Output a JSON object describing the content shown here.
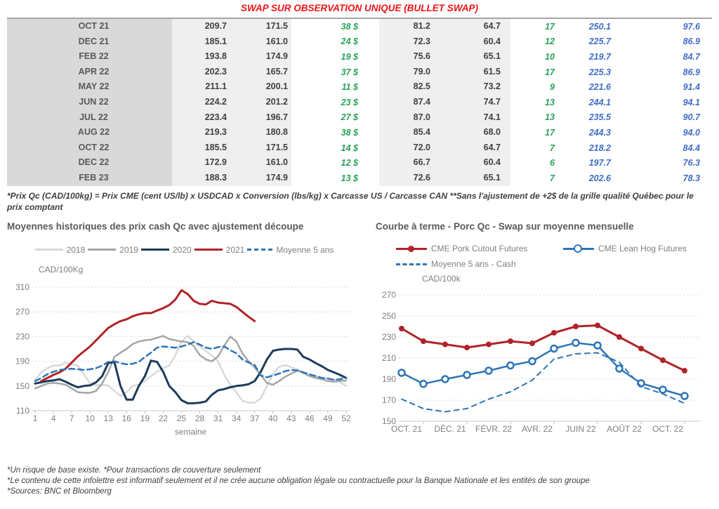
{
  "page": {
    "title": "SWAP SUR OBSERVATION UNIQUE (BULLET SWAP)",
    "title_color": "#ee1416",
    "table_footnote": "*Prix Qc (CAD/100kg) = Prix CME (cent US/lb) x USDCAD x Conversion (lbs/kg) x Carcasse US / Carcasse CAN **Sans l'ajustement de +2$ de la grille qualité Québec pour le prix comptant",
    "footer_lines": [
      "*Un risque de base existe. *Pour transactions de couverture seulement",
      "*Le contenu de cette infolettre est informatif seulement et il ne crée aucune obligation légale ou contractuelle pour la Banque Nationale et les entités de son groupe",
      "*Sources: BNC et Bloomberg"
    ]
  },
  "table": {
    "colors": {
      "green": "#27a159",
      "blue": "#3e6dc5",
      "label_bg": "#d9d9d9",
      "band_bg": "#efefef"
    },
    "rows": [
      {
        "month": "OCT 21",
        "values": [
          "209.7",
          "171.5",
          "38 $",
          "81.2",
          "64.7",
          "17",
          "250.1",
          "97.6"
        ]
      },
      {
        "month": "DEC 21",
        "values": [
          "185.1",
          "161.0",
          "24 $",
          "72.3",
          "60.4",
          "12",
          "225.7",
          "86.9"
        ]
      },
      {
        "month": "FEB 22",
        "values": [
          "193.8",
          "174.9",
          "19 $",
          "75.6",
          "65.1",
          "10",
          "219.7",
          "84.7"
        ]
      },
      {
        "month": "APR 22",
        "values": [
          "202.3",
          "165.7",
          "37 $",
          "79.0",
          "61.5",
          "17",
          "225.3",
          "86.9"
        ]
      },
      {
        "month": "MAY 22",
        "values": [
          "211.1",
          "200.1",
          "11 $",
          "82.5",
          "73.2",
          "9",
          "221.6",
          "91.4"
        ]
      },
      {
        "month": "JUN 22",
        "values": [
          "224.2",
          "201.2",
          "23 $",
          "87.4",
          "74.7",
          "13",
          "244.1",
          "94.1"
        ]
      },
      {
        "month": "JUL 22",
        "values": [
          "223.4",
          "196.7",
          "27 $",
          "87.0",
          "74.1",
          "13",
          "235.5",
          "90.7"
        ]
      },
      {
        "month": "AUG 22",
        "values": [
          "219.3",
          "180.8",
          "38 $",
          "85.4",
          "68.0",
          "17",
          "244.3",
          "94.0"
        ]
      },
      {
        "month": "OCT 22",
        "values": [
          "185.5",
          "171.5",
          "14 $",
          "72.0",
          "64.7",
          "7",
          "218.2",
          "84.4"
        ]
      },
      {
        "month": "DEC 22",
        "values": [
          "172.9",
          "161.0",
          "12 $",
          "66.7",
          "60.4",
          "6",
          "197.7",
          "76.3"
        ]
      },
      {
        "month": "FEB 23",
        "values": [
          "188.3",
          "174.9",
          "13 $",
          "72.6",
          "65.1",
          "7",
          "202.6",
          "78.3"
        ]
      }
    ]
  },
  "chart_data": [
    {
      "type": "line",
      "title": "Moyennes historiques des prix cash Qc avec ajustement découpe",
      "unit": "CAD/100Kg",
      "xlabel": "semaine",
      "ylim": [
        110,
        310
      ],
      "yticks": [
        110,
        150,
        190,
        230,
        270,
        310
      ],
      "xtick_i": [
        0,
        3,
        6,
        9,
        12,
        15,
        18,
        21,
        24,
        27,
        30,
        33,
        36,
        39,
        42,
        45,
        48,
        51
      ],
      "xtick_labels": [
        "1",
        "4",
        "7",
        "10",
        "13",
        "16",
        "19",
        "22",
        "25",
        "28",
        "31",
        "34",
        "37",
        "40",
        "43",
        "46",
        "49",
        "52"
      ],
      "grid": "horizontal-dashed",
      "legend_position": "top-center",
      "series": [
        {
          "name": "2018",
          "color": "#d9d9d9",
          "width": 2.5,
          "values": [
            160,
            172,
            179,
            183,
            183,
            188,
            185,
            183,
            169,
            154,
            151,
            152,
            151,
            142,
            134,
            140,
            150,
            152,
            158,
            166,
            173,
            179,
            183,
            200,
            222,
            231,
            222,
            214,
            207,
            199,
            190,
            168,
            152,
            140,
            126,
            123,
            123,
            130,
            150,
            170,
            181,
            184,
            180,
            177,
            172,
            168,
            166,
            164,
            162,
            160,
            156,
            150
          ]
        },
        {
          "name": "2019",
          "color": "#a6a6a6",
          "width": 2.5,
          "values": [
            146,
            150,
            154,
            155,
            154,
            152,
            146,
            140,
            139,
            139,
            142,
            154,
            173,
            197,
            204,
            210,
            218,
            222,
            224,
            225,
            228,
            231,
            226,
            224,
            222,
            221,
            215,
            200,
            193,
            190,
            198,
            215,
            230,
            222,
            203,
            190,
            180,
            168,
            155,
            152,
            158,
            165,
            170,
            175,
            171,
            166,
            163,
            161,
            158,
            157,
            158,
            159
          ]
        },
        {
          "name": "2020",
          "color": "#1d3c5c",
          "width": 3,
          "values": [
            154,
            156,
            158,
            159,
            161,
            157,
            152,
            148,
            150,
            151,
            156,
            166,
            187,
            189,
            150,
            128,
            128,
            150,
            166,
            191,
            189,
            173,
            150,
            140,
            127,
            122,
            122,
            123,
            125,
            136,
            143,
            145,
            148,
            150,
            151,
            153,
            158,
            173,
            193,
            207,
            209,
            210,
            210,
            209,
            197,
            193,
            187,
            182,
            176,
            172,
            168,
            163
          ]
        },
        {
          "name": "2021",
          "color": "#b02428",
          "width": 3,
          "values": [
            null,
            158,
            163,
            168,
            172,
            178,
            188,
            198,
            206,
            214,
            224,
            234,
            244,
            250,
            255,
            258,
            263,
            266,
            268,
            268,
            272,
            276,
            281,
            290,
            305,
            299,
            288,
            283,
            282,
            288,
            285,
            284,
            283,
            278,
            270,
            262,
            255,
            null,
            null,
            null,
            null,
            null,
            null,
            null,
            null,
            null,
            null,
            null,
            null,
            null,
            null,
            null
          ]
        },
        {
          "name": "Moyenne 5 ans",
          "color": "#2e75b6",
          "width": 2.5,
          "dash": "8,5",
          "values": [
            158,
            163,
            169,
            173,
            176,
            177,
            178,
            177,
            176,
            177,
            179,
            183,
            189,
            190,
            187,
            185,
            186,
            189,
            197,
            204,
            212,
            214,
            213,
            212,
            214,
            217,
            221,
            217,
            212,
            210,
            213,
            214,
            208,
            203,
            193,
            188,
            184,
            167,
            164,
            167,
            170,
            174,
            176,
            175,
            172,
            169,
            166,
            163,
            162,
            160,
            161,
            163
          ]
        }
      ]
    },
    {
      "type": "line",
      "title": "Courbe à terme - Porc Qc - Swap sur moyenne mensuelle",
      "unit": "CAD/100k",
      "ylim": [
        150,
        270
      ],
      "yticks": [
        150,
        170,
        190,
        210,
        230,
        250,
        270
      ],
      "xtick_i": [
        0,
        2,
        4,
        6,
        8,
        10,
        12
      ],
      "xtick_labels": [
        "OCT. 21",
        "DÉC. 21",
        "FÉVR. 22",
        "AVR. 22",
        "JUIN 22",
        "AOÛT 22",
        "OCT. 22"
      ],
      "tick_i": [
        1,
        3,
        5,
        7,
        9,
        11,
        13
      ],
      "grid": "horizontal-dashed",
      "legend_position": "top-left",
      "series": [
        {
          "name": "CME Pork Cutout Futures",
          "color": "#b02428",
          "width": 3,
          "marker": "filled",
          "values": [
            238,
            226,
            223,
            220,
            223,
            226,
            224,
            234,
            240,
            241,
            230,
            219,
            208,
            198
          ]
        },
        {
          "name": "CME Lean Hog Futures",
          "color": "#2e75b6",
          "width": 2.5,
          "marker": "open",
          "values": [
            196,
            185.5,
            190,
            194,
            198,
            203,
            207,
            219,
            224.5,
            222,
            200,
            186,
            180,
            174
          ]
        },
        {
          "name": "Moyenne 5 ans - Cash",
          "color": "#2e75b6",
          "width": 2,
          "dash": "7,6",
          "values": [
            171,
            162,
            159,
            162,
            171,
            178,
            189,
            209,
            214,
            215,
            206,
            183,
            176,
            167
          ]
        }
      ]
    }
  ]
}
